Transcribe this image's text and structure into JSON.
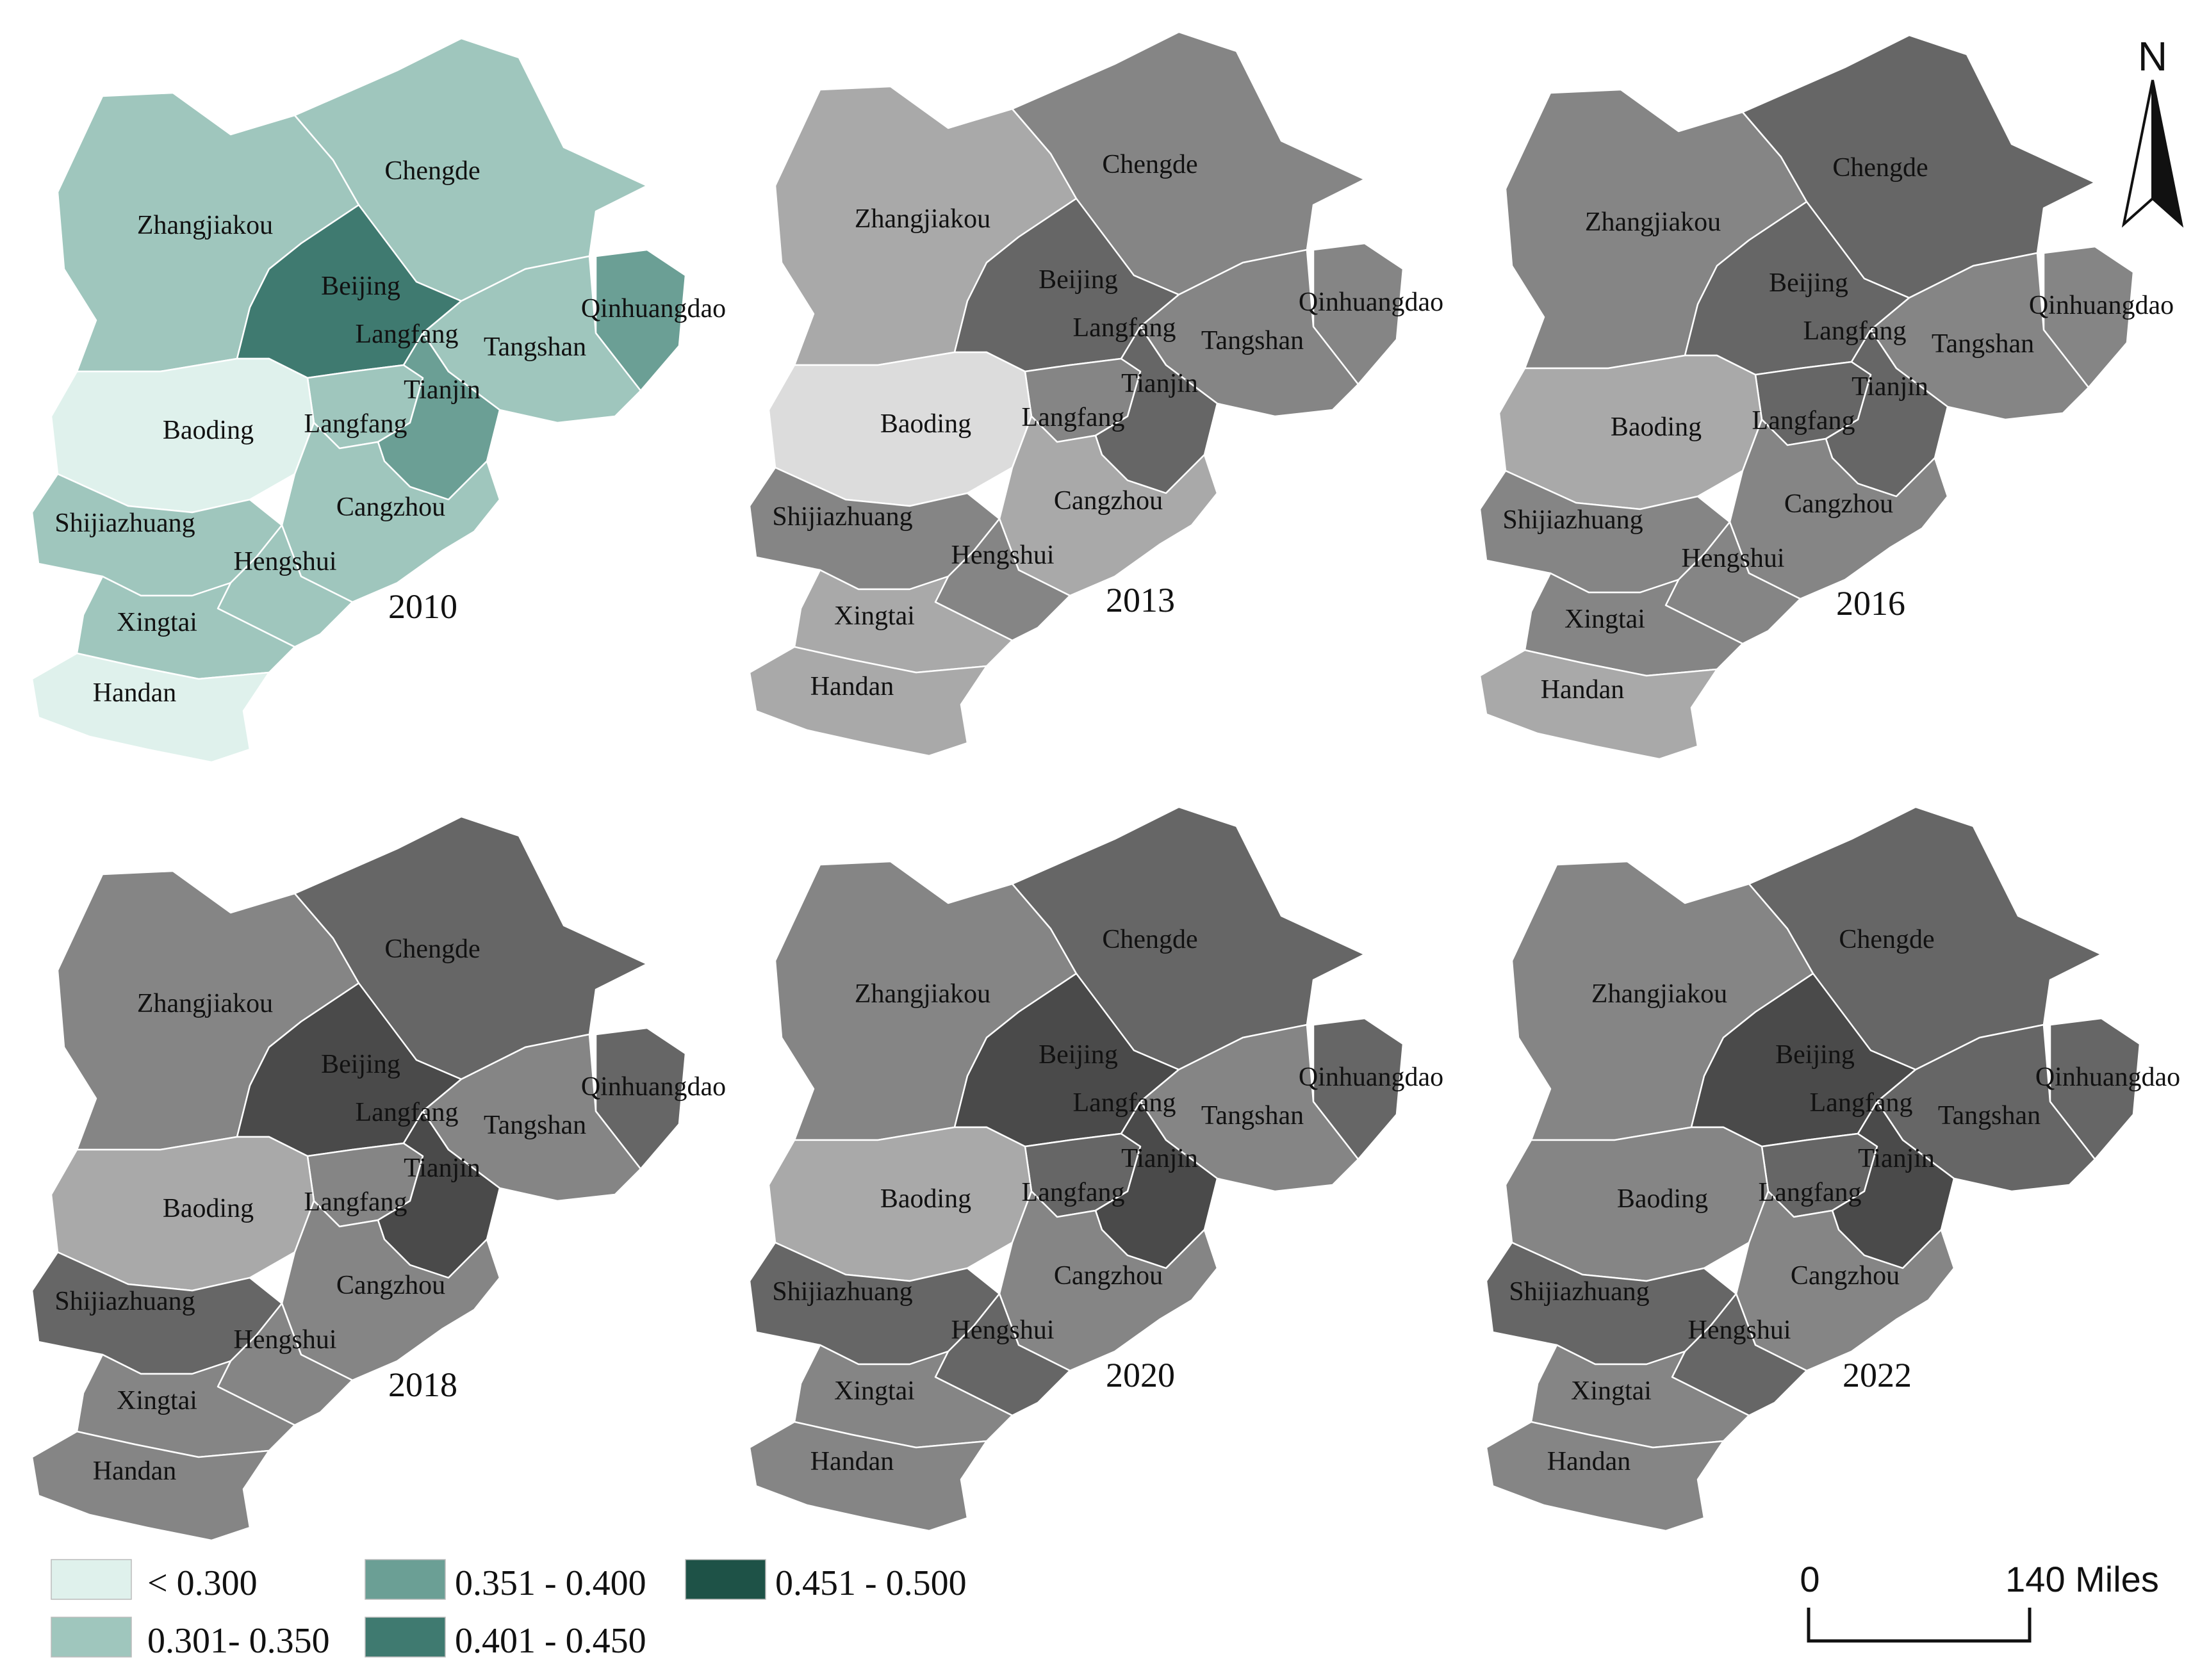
{
  "figure": {
    "panels": [
      {
        "year": "2010",
        "colors": {
          "Zhangjiakou": "#9fc6bd",
          "Chengde": "#9fc6bd",
          "Beijing": "#3f7a70",
          "Langfang": "#9fc6bd",
          "Tianjin": "#6b9f95",
          "Tangshan": "#9fc6bd",
          "Qinhuangdao": "#6b9f95",
          "Baoding": "#dff1ec",
          "Shijiazhuang": "#9fc6bd",
          "Cangzhou": "#9fc6bd",
          "Hengshui": "#9fc6bd",
          "Xingtai": "#9fc6bd",
          "Handan": "#dff1ec"
        }
      },
      {
        "year": "2013",
        "colors": {
          "Zhangjiakou": "#a9a9a9",
          "Chengde": "#858585",
          "Beijing": "#666666",
          "Langfang": "#858585",
          "Tianjin": "#666666",
          "Tangshan": "#858585",
          "Qinhuangdao": "#858585",
          "Baoding": "#dcdcdc",
          "Shijiazhuang": "#858585",
          "Cangzhou": "#a9a9a9",
          "Hengshui": "#858585",
          "Xingtai": "#a9a9a9",
          "Handan": "#a9a9a9"
        }
      },
      {
        "year": "2016",
        "colors": {
          "Zhangjiakou": "#858585",
          "Chengde": "#666666",
          "Beijing": "#666666",
          "Langfang": "#666666",
          "Tianjin": "#666666",
          "Tangshan": "#858585",
          "Qinhuangdao": "#858585",
          "Baoding": "#a9a9a9",
          "Shijiazhuang": "#858585",
          "Cangzhou": "#858585",
          "Hengshui": "#858585",
          "Xingtai": "#858585",
          "Handan": "#a9a9a9"
        }
      },
      {
        "year": "2018",
        "colors": {
          "Zhangjiakou": "#858585",
          "Chengde": "#666666",
          "Beijing": "#4a4a4a",
          "Langfang": "#858585",
          "Tianjin": "#4a4a4a",
          "Tangshan": "#858585",
          "Qinhuangdao": "#666666",
          "Baoding": "#a9a9a9",
          "Shijiazhuang": "#666666",
          "Cangzhou": "#858585",
          "Hengshui": "#858585",
          "Xingtai": "#858585",
          "Handan": "#858585"
        }
      },
      {
        "year": "2020",
        "colors": {
          "Zhangjiakou": "#858585",
          "Chengde": "#666666",
          "Beijing": "#4a4a4a",
          "Langfang": "#666666",
          "Tianjin": "#4a4a4a",
          "Tangshan": "#858585",
          "Qinhuangdao": "#666666",
          "Baoding": "#a9a9a9",
          "Shijiazhuang": "#666666",
          "Cangzhou": "#858585",
          "Hengshui": "#666666",
          "Xingtai": "#858585",
          "Handan": "#858585"
        }
      },
      {
        "year": "2022",
        "colors": {
          "Zhangjiakou": "#858585",
          "Chengde": "#666666",
          "Beijing": "#4a4a4a",
          "Langfang": "#666666",
          "Tianjin": "#4a4a4a",
          "Tangshan": "#666666",
          "Qinhuangdao": "#666666",
          "Baoding": "#858585",
          "Shijiazhuang": "#666666",
          "Cangzhou": "#858585",
          "Hengshui": "#666666",
          "Xingtai": "#858585",
          "Handan": "#858585"
        }
      }
    ],
    "city_labels": {
      "Zhangjiakou": "Zhangjiakou",
      "Chengde": "Chengde",
      "Beijing": "Beijing",
      "Langfang": "Langfang",
      "Tianjin": "Tianjin",
      "Tangshan": "Tangshan",
      "Qinhuangdao": "Qinhuangdao",
      "Baoding": "Baoding",
      "Shijiazhuang": "Shijiazhuang",
      "Cangzhou": "Cangzhou",
      "Hengshui": "Hengshui",
      "Xingtai": "Xingtai",
      "Handan": "Handan"
    },
    "legend": [
      {
        "label": "< 0.300",
        "color": "#dff1ec"
      },
      {
        "label": "0.301- 0.350",
        "color": "#9fc6bd"
      },
      {
        "label": "0.351 - 0.400",
        "color": "#6b9f95"
      },
      {
        "label": "0.401 - 0.450",
        "color": "#3f7a70"
      },
      {
        "label": "0.451 - 0.500",
        "color": "#1e5247"
      }
    ],
    "north_arrow_label": "N",
    "scale_bar": {
      "start": "0",
      "end": "140 Miles"
    }
  }
}
